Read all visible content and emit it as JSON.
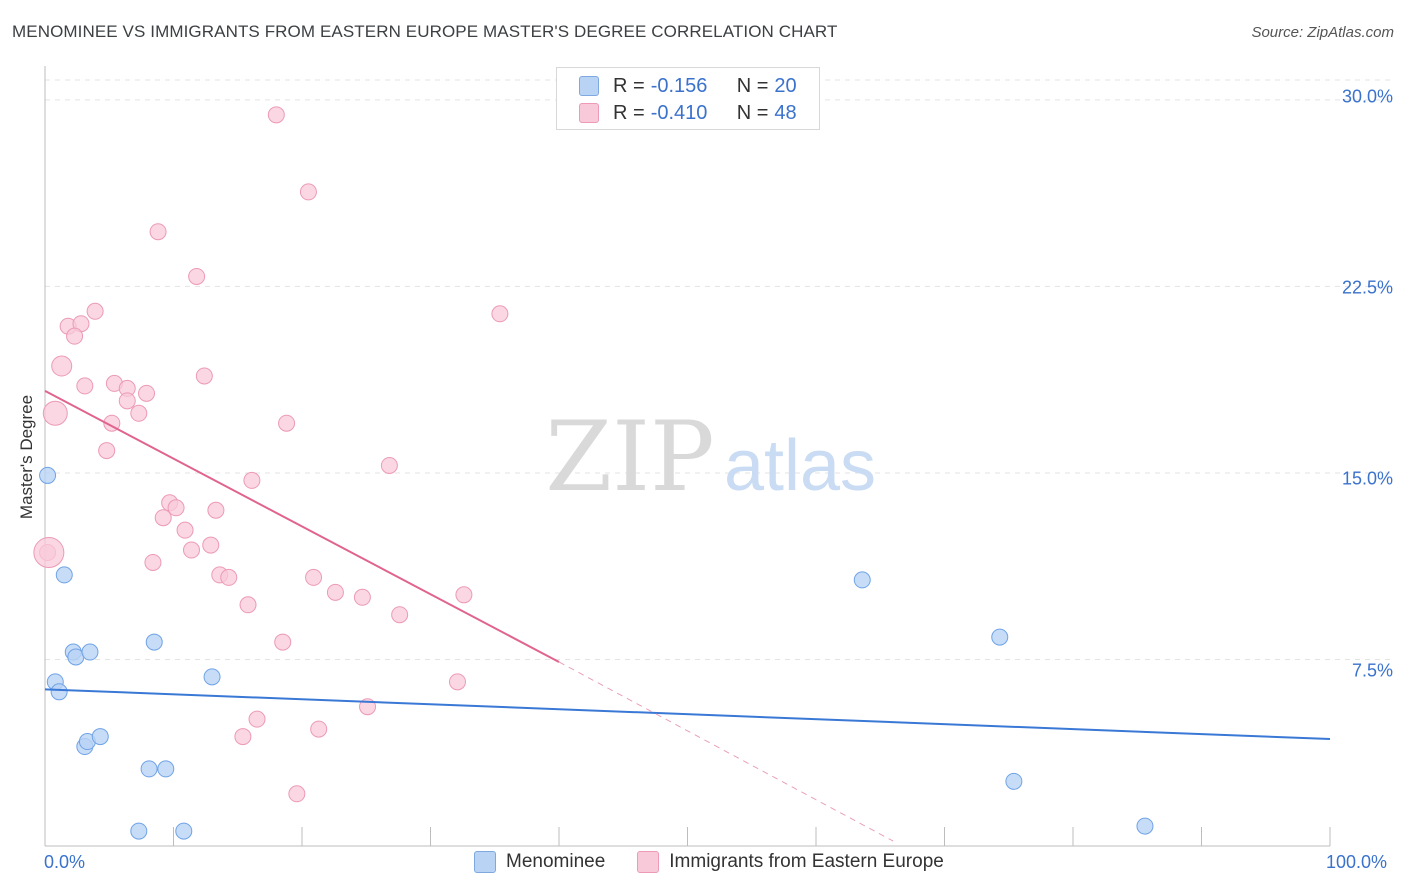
{
  "title": "MENOMINEE VS IMMIGRANTS FROM EASTERN EUROPE MASTER'S DEGREE CORRELATION CHART",
  "source": "Source: ZipAtlas.com",
  "watermark": {
    "zip": "ZIP",
    "atlas": "atlas"
  },
  "legend": {
    "r_label": "R =",
    "n_label": "N =",
    "series": [
      {
        "name": "Menominee",
        "r": "-0.156",
        "n": "20",
        "color": "#b9d3f5"
      },
      {
        "name": "Immigrants from Eastern Europe",
        "r": "-0.410",
        "n": "48",
        "color": "#f8c9d8"
      }
    ]
  },
  "chart_data": {
    "type": "scatter",
    "title": "MENOMINEE VS IMMIGRANTS FROM EASTERN EUROPE MASTER'S DEGREE CORRELATION CHART",
    "xlabel": "",
    "ylabel": "Master's Degree",
    "xlim": [
      0,
      100
    ],
    "ylim": [
      0,
      30
    ],
    "x_tick_labels": [
      "0.0%",
      "100.0%"
    ],
    "y_ticks": [
      7.5,
      15.0,
      22.5,
      30.0
    ],
    "y_tick_labels": [
      "7.5%",
      "15.0%",
      "22.5%",
      "30.0%"
    ],
    "grid": true,
    "series": [
      {
        "name": "Menominee",
        "color": "#6fa3e6",
        "fill": "#b9d3f5",
        "trend": {
          "x": [
            0,
            100
          ],
          "y": [
            6.3,
            4.3
          ]
        },
        "points": [
          [
            0.2,
            14.9
          ],
          [
            1.5,
            10.9
          ],
          [
            0.8,
            6.6
          ],
          [
            1.1,
            6.2
          ],
          [
            2.2,
            7.8
          ],
          [
            2.4,
            7.6
          ],
          [
            3.5,
            7.8
          ],
          [
            8.5,
            8.2
          ],
          [
            13.0,
            6.8
          ],
          [
            3.1,
            4.0
          ],
          [
            3.3,
            4.2
          ],
          [
            4.3,
            4.4
          ],
          [
            8.1,
            3.1
          ],
          [
            9.4,
            3.1
          ],
          [
            7.3,
            0.6
          ],
          [
            10.8,
            0.6
          ],
          [
            63.6,
            10.7
          ],
          [
            74.3,
            8.4
          ],
          [
            75.4,
            2.6
          ],
          [
            85.6,
            0.8
          ]
        ]
      },
      {
        "name": "Immigrants from Eastern Europe",
        "color": "#e8729a",
        "fill": "#f8c9d8",
        "trend": {
          "x": [
            0,
            40
          ],
          "y": [
            18.3,
            7.4
          ]
        },
        "trend_extension": {
          "x": [
            40,
            66
          ],
          "y": [
            7.4,
            0.2
          ]
        },
        "points": [
          [
            18.0,
            29.4
          ],
          [
            20.5,
            26.3
          ],
          [
            8.8,
            24.7
          ],
          [
            11.8,
            22.9
          ],
          [
            35.4,
            21.4
          ],
          [
            3.9,
            21.5
          ],
          [
            1.8,
            20.9
          ],
          [
            2.8,
            21.0
          ],
          [
            2.3,
            20.5
          ],
          [
            1.3,
            19.3
          ],
          [
            12.4,
            18.9
          ],
          [
            5.4,
            18.6
          ],
          [
            3.1,
            18.5
          ],
          [
            6.4,
            18.4
          ],
          [
            7.9,
            18.2
          ],
          [
            6.4,
            17.9
          ],
          [
            0.8,
            17.4
          ],
          [
            7.3,
            17.4
          ],
          [
            5.2,
            17.0
          ],
          [
            18.8,
            17.0
          ],
          [
            4.8,
            15.9
          ],
          [
            16.1,
            14.7
          ],
          [
            26.8,
            15.3
          ],
          [
            9.7,
            13.8
          ],
          [
            10.2,
            13.6
          ],
          [
            13.3,
            13.5
          ],
          [
            9.2,
            13.2
          ],
          [
            10.9,
            12.7
          ],
          [
            12.9,
            12.1
          ],
          [
            11.4,
            11.9
          ],
          [
            0.2,
            11.8
          ],
          [
            8.4,
            11.4
          ],
          [
            13.6,
            10.9
          ],
          [
            14.3,
            10.8
          ],
          [
            20.9,
            10.8
          ],
          [
            22.6,
            10.2
          ],
          [
            24.7,
            10.0
          ],
          [
            32.6,
            10.1
          ],
          [
            15.8,
            9.7
          ],
          [
            27.6,
            9.3
          ],
          [
            18.5,
            8.2
          ],
          [
            32.1,
            6.6
          ],
          [
            25.1,
            5.6
          ],
          [
            16.5,
            5.1
          ],
          [
            15.4,
            4.4
          ],
          [
            21.3,
            4.7
          ],
          [
            19.6,
            2.1
          ],
          [
            0.3,
            11.8
          ]
        ]
      }
    ]
  }
}
